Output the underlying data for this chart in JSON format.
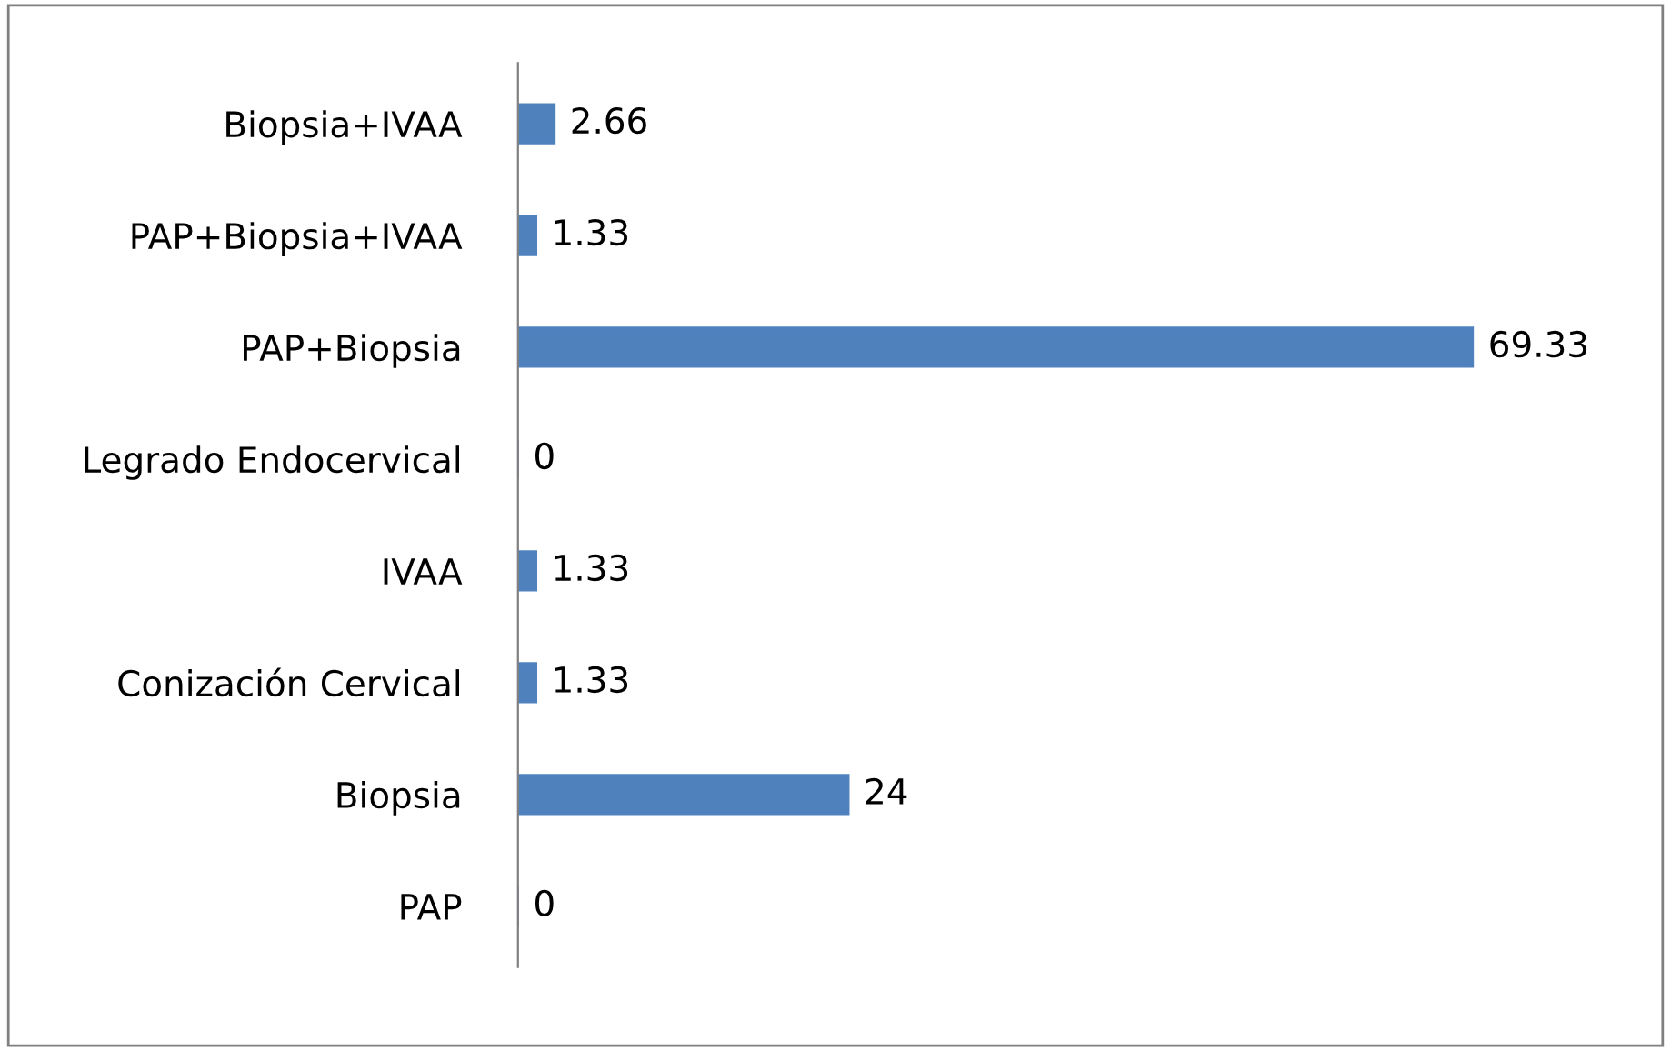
{
  "chart_data": {
    "type": "bar",
    "orientation": "horizontal",
    "categories": [
      "Biopsia+IVAA",
      "PAP+Biopsia+IVAA",
      "PAP+Biopsia",
      "Legrado Endocervical",
      "IVAA",
      "Conización Cervical",
      "Biopsia",
      "PAP"
    ],
    "values": [
      2.66,
      1.33,
      69.33,
      0,
      1.33,
      1.33,
      24,
      0
    ],
    "color": "#4f81bd",
    "data_labels": true,
    "grid": false,
    "legend": false
  }
}
